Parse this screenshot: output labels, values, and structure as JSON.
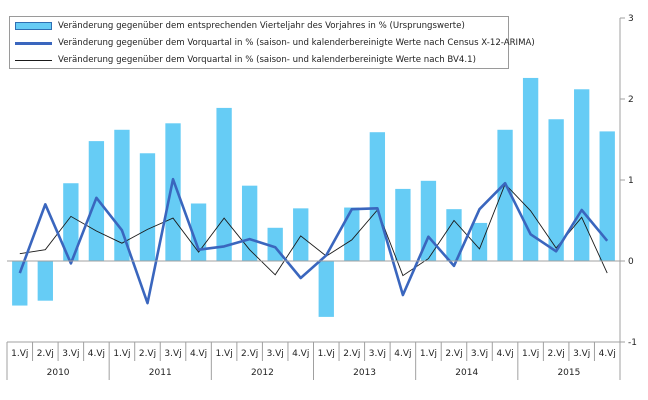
{
  "chart_data": {
    "type": "bar",
    "years": [
      "2010",
      "2011",
      "2012",
      "2013",
      "2014",
      "2015"
    ],
    "categories": [
      "1.Vj",
      "2.Vj",
      "3.Vj",
      "4.Vj",
      "1.Vj",
      "2.Vj",
      "3.Vj",
      "4.Vj",
      "1.Vj",
      "2.Vj",
      "3.Vj",
      "4.Vj",
      "1.Vj",
      "2.Vj",
      "3.Vj",
      "4.Vj",
      "1.Vj",
      "2.Vj",
      "3.Vj",
      "4.Vj",
      "1.Vj",
      "2.Vj",
      "3.Vj",
      "4.Vj"
    ],
    "ylim": [
      -1,
      3
    ],
    "yticks": [
      -1,
      0,
      1,
      2,
      3
    ],
    "grid": false,
    "legend_position": "top-left",
    "colors": {
      "bar": "#66ccf5",
      "bar_edge": "#2f6fb3",
      "line_thick": "#3a66be",
      "line_thin": "#1a1a1a",
      "axis": "#a0a0a0"
    },
    "series": [
      {
        "name": "Veränderung gegenüber dem entsprechenden Vierteljahr des Vorjahres in % (Ursprungswerte)",
        "kind": "bar",
        "values": [
          -0.55,
          -0.49,
          0.96,
          1.48,
          1.62,
          1.33,
          1.7,
          0.71,
          1.89,
          0.93,
          0.41,
          0.65,
          -0.69,
          0.66,
          1.59,
          0.89,
          0.99,
          0.64,
          0.47,
          1.62,
          2.26,
          1.75,
          2.12,
          1.6
        ]
      },
      {
        "name": "Veränderung gegenüber dem Vorquartal in % (saison- und kalenderbereinigte Werte nach Census X-12-ARIMA)",
        "kind": "line-thick",
        "values": [
          -0.15,
          0.7,
          -0.03,
          0.78,
          0.38,
          -0.52,
          1.01,
          0.14,
          0.18,
          0.27,
          0.17,
          -0.21,
          0.07,
          0.64,
          0.65,
          -0.42,
          0.3,
          -0.06,
          0.64,
          0.96,
          0.33,
          0.12,
          0.63,
          0.25
        ]
      },
      {
        "name": "Veränderung gegenüber dem Vorquartal in % (saison- und kalenderbereinigte Werte nach BV4.1)",
        "kind": "line-thin",
        "values": [
          0.09,
          0.14,
          0.55,
          0.37,
          0.22,
          0.39,
          0.53,
          0.11,
          0.53,
          0.14,
          -0.17,
          0.31,
          0.06,
          0.26,
          0.63,
          -0.18,
          0.03,
          0.5,
          0.15,
          0.95,
          0.62,
          0.16,
          0.54,
          -0.15
        ]
      }
    ]
  }
}
